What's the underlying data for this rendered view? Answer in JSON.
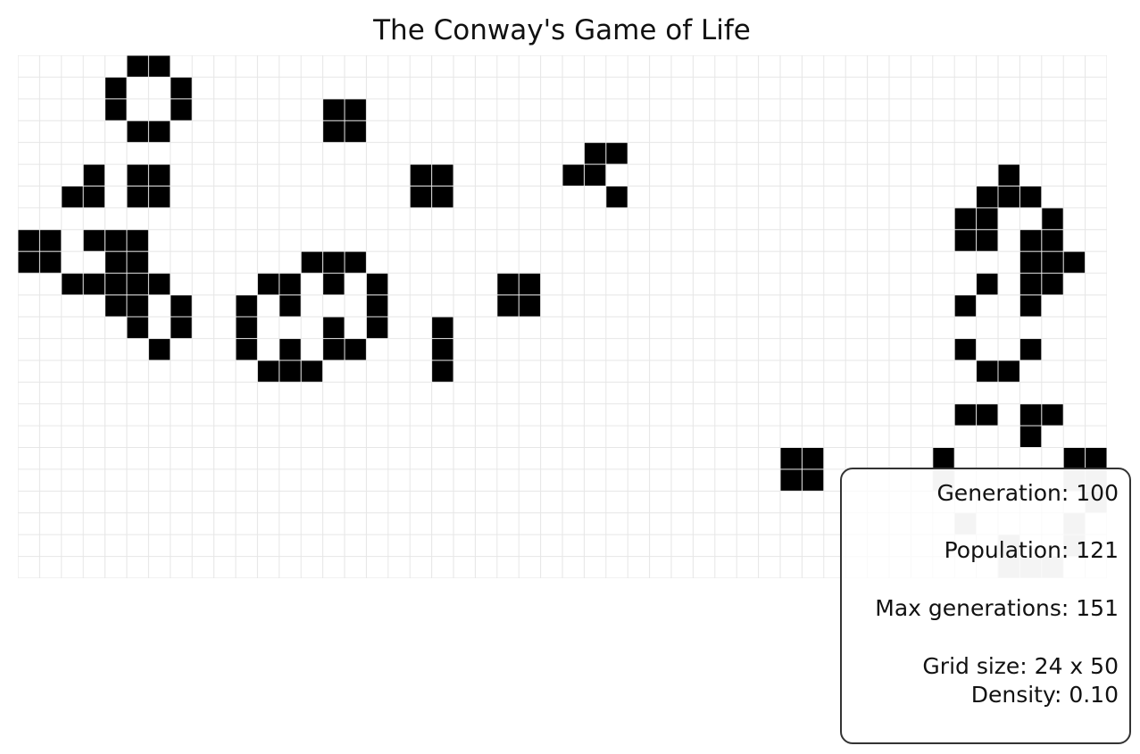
{
  "title": "The Conway's Game of Life",
  "info": {
    "generation": "Generation: 100",
    "population": "Population: 121",
    "max_generations": "Max generations: 151",
    "grid_size": "Grid size: 24 x 50",
    "density": "Density: 0.10"
  },
  "grid": {
    "rows": 24,
    "cols": 50,
    "colors": {
      "alive": "#000000",
      "dead": "#ffffff",
      "gridline": "#e6e6e6",
      "alive_under_panel": "#cccccc"
    },
    "alive_cells": [
      [
        0,
        5
      ],
      [
        0,
        6
      ],
      [
        1,
        4
      ],
      [
        1,
        7
      ],
      [
        2,
        4
      ],
      [
        2,
        7
      ],
      [
        2,
        14
      ],
      [
        2,
        15
      ],
      [
        3,
        5
      ],
      [
        3,
        6
      ],
      [
        3,
        14
      ],
      [
        3,
        15
      ],
      [
        4,
        26
      ],
      [
        4,
        27
      ],
      [
        5,
        3
      ],
      [
        5,
        5
      ],
      [
        5,
        6
      ],
      [
        5,
        18
      ],
      [
        5,
        19
      ],
      [
        5,
        25
      ],
      [
        5,
        26
      ],
      [
        5,
        45
      ],
      [
        6,
        2
      ],
      [
        6,
        3
      ],
      [
        6,
        5
      ],
      [
        6,
        6
      ],
      [
        6,
        18
      ],
      [
        6,
        19
      ],
      [
        6,
        27
      ],
      [
        6,
        44
      ],
      [
        6,
        45
      ],
      [
        6,
        46
      ],
      [
        7,
        43
      ],
      [
        7,
        44
      ],
      [
        7,
        47
      ],
      [
        8,
        0
      ],
      [
        8,
        1
      ],
      [
        8,
        3
      ],
      [
        8,
        4
      ],
      [
        8,
        5
      ],
      [
        8,
        43
      ],
      [
        8,
        44
      ],
      [
        8,
        46
      ],
      [
        8,
        47
      ],
      [
        9,
        0
      ],
      [
        9,
        1
      ],
      [
        9,
        4
      ],
      [
        9,
        5
      ],
      [
        9,
        13
      ],
      [
        9,
        14
      ],
      [
        9,
        15
      ],
      [
        9,
        46
      ],
      [
        9,
        47
      ],
      [
        9,
        48
      ],
      [
        10,
        2
      ],
      [
        10,
        3
      ],
      [
        10,
        4
      ],
      [
        10,
        5
      ],
      [
        10,
        6
      ],
      [
        10,
        11
      ],
      [
        10,
        12
      ],
      [
        10,
        14
      ],
      [
        10,
        16
      ],
      [
        10,
        22
      ],
      [
        10,
        23
      ],
      [
        10,
        44
      ],
      [
        10,
        46
      ],
      [
        10,
        47
      ],
      [
        11,
        4
      ],
      [
        11,
        5
      ],
      [
        11,
        7
      ],
      [
        11,
        10
      ],
      [
        11,
        12
      ],
      [
        11,
        16
      ],
      [
        11,
        22
      ],
      [
        11,
        23
      ],
      [
        11,
        43
      ],
      [
        11,
        46
      ],
      [
        12,
        5
      ],
      [
        12,
        7
      ],
      [
        12,
        10
      ],
      [
        12,
        14
      ],
      [
        12,
        16
      ],
      [
        12,
        19
      ],
      [
        13,
        6
      ],
      [
        13,
        10
      ],
      [
        13,
        12
      ],
      [
        13,
        14
      ],
      [
        13,
        15
      ],
      [
        13,
        19
      ],
      [
        13,
        43
      ],
      [
        13,
        46
      ],
      [
        14,
        11
      ],
      [
        14,
        12
      ],
      [
        14,
        13
      ],
      [
        14,
        19
      ],
      [
        14,
        44
      ],
      [
        14,
        45
      ],
      [
        16,
        43
      ],
      [
        16,
        44
      ],
      [
        16,
        46
      ],
      [
        16,
        47
      ],
      [
        17,
        46
      ],
      [
        18,
        35
      ],
      [
        18,
        36
      ],
      [
        18,
        42
      ],
      [
        18,
        48
      ],
      [
        18,
        49
      ],
      [
        19,
        35
      ],
      [
        19,
        36
      ],
      [
        19,
        42
      ],
      [
        19,
        48
      ],
      [
        19,
        49
      ],
      [
        20,
        49
      ],
      [
        21,
        43
      ],
      [
        21,
        48
      ],
      [
        22,
        45
      ],
      [
        22,
        48
      ],
      [
        23,
        45
      ],
      [
        23,
        46
      ],
      [
        23,
        47
      ]
    ]
  }
}
